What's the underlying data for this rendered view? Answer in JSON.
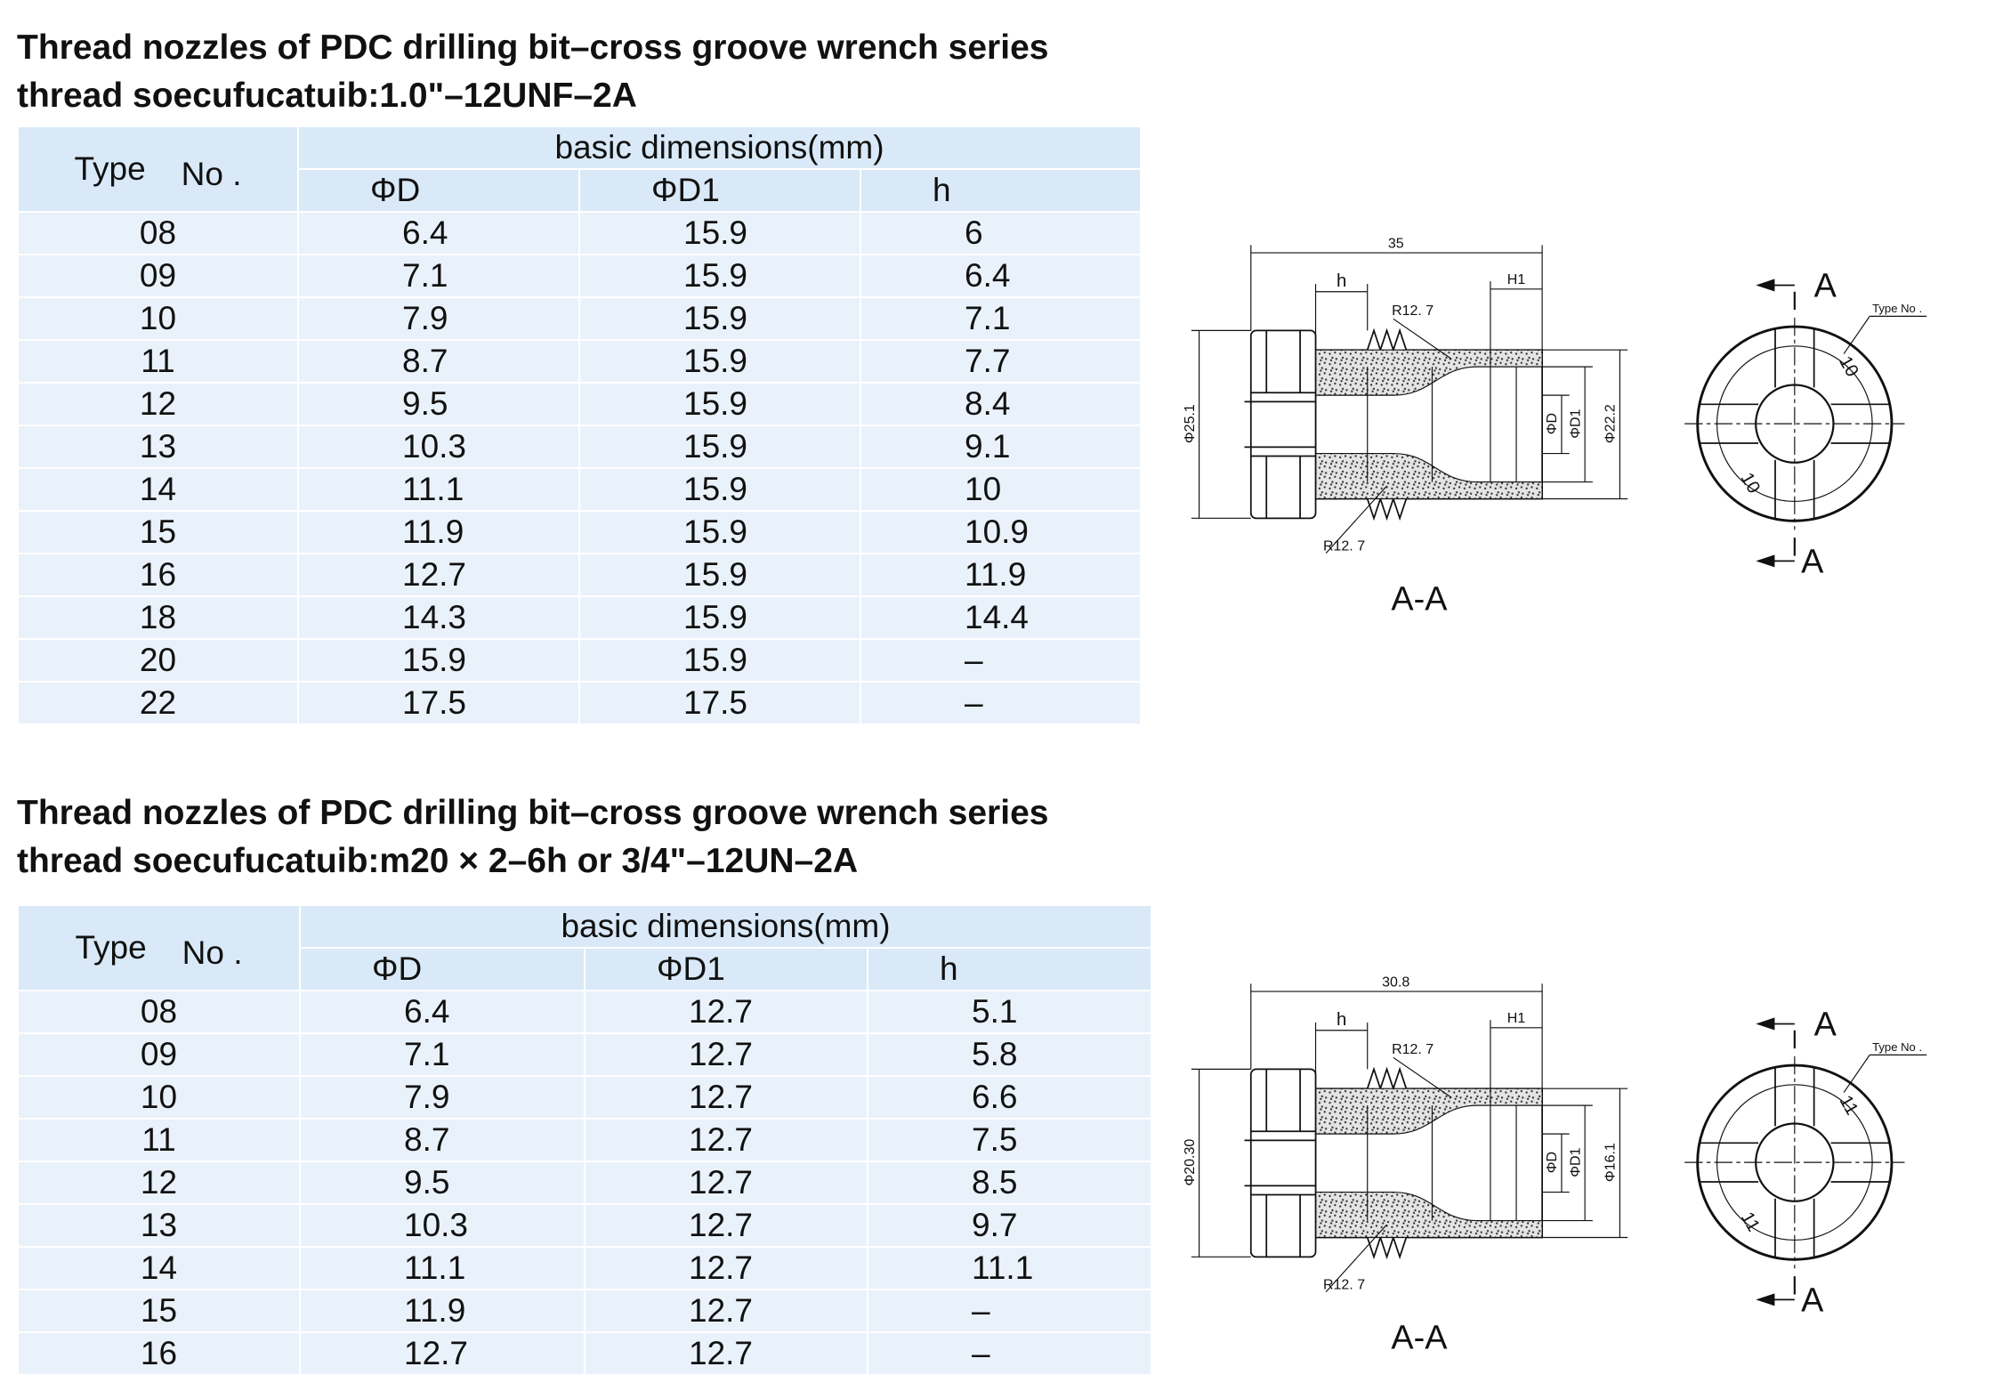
{
  "sections": [
    {
      "title": [
        "Thread nozzles of PDC drilling bit–cross groove wrench series",
        "thread soecufucatuib:1.0\"–12UNF–2A"
      ],
      "table": {
        "header": {
          "type": "Type",
          "no": "No .",
          "group": "basic dimensions(mm)",
          "columns": [
            "ΦD",
            "ΦD1",
            "h"
          ]
        },
        "rows": [
          [
            "08",
            "6.4",
            "15.9",
            "6"
          ],
          [
            "09",
            "7.1",
            "15.9",
            "6.4"
          ],
          [
            "10",
            "7.9",
            "15.9",
            "7.1"
          ],
          [
            "11",
            "8.7",
            "15.9",
            "7.7"
          ],
          [
            "12",
            "9.5",
            "15.9",
            "8.4"
          ],
          [
            "13",
            "10.3",
            "15.9",
            "9.1"
          ],
          [
            "14",
            "11.1",
            "15.9",
            "10"
          ],
          [
            "15",
            "11.9",
            "15.9",
            "10.9"
          ],
          [
            "16",
            "12.7",
            "15.9",
            "11.9"
          ],
          [
            "18",
            "14.3",
            "15.9",
            "14.4"
          ],
          [
            "20",
            "15.9",
            "15.9",
            "–"
          ],
          [
            "22",
            "17.5",
            "17.5",
            "–"
          ]
        ]
      },
      "drawing": {
        "overall": "35",
        "h": "h",
        "h1": "H1",
        "radius_top": "R12. 7",
        "radius_bottom": "R12. 7",
        "outer_dia": "Φ25.1",
        "d": "ΦD",
        "d1": "ΦD1",
        "body_dia": "Φ22.2",
        "section_top": "A",
        "section_bottom": "A",
        "type_no": "Type No .",
        "mark_top": "10",
        "mark_bottom": "10",
        "caption": "A-A"
      }
    },
    {
      "title": [
        "Thread nozzles of PDC drilling bit–cross groove wrench series",
        "thread soecufucatuib:m20 × 2–6h or 3/4\"–12UN–2A"
      ],
      "table": {
        "header": {
          "type": "Type",
          "no": "No .",
          "group": "basic dimensions(mm)",
          "columns": [
            "ΦD",
            "ΦD1",
            "h"
          ]
        },
        "rows": [
          [
            "08",
            "6.4",
            "12.7",
            "5.1"
          ],
          [
            "09",
            "7.1",
            "12.7",
            "5.8"
          ],
          [
            "10",
            "7.9",
            "12.7",
            "6.6"
          ],
          [
            "11",
            "8.7",
            "12.7",
            "7.5"
          ],
          [
            "12",
            "9.5",
            "12.7",
            "8.5"
          ],
          [
            "13",
            "10.3",
            "12.7",
            "9.7"
          ],
          [
            "14",
            "11.1",
            "12.7",
            "11.1"
          ],
          [
            "15",
            "11.9",
            "12.7",
            "–"
          ],
          [
            "16",
            "12.7",
            "12.7",
            "–"
          ]
        ]
      },
      "drawing": {
        "overall": "30.8",
        "h": "h",
        "h1": "H1",
        "radius_top": "R12. 7",
        "radius_bottom": "R12. 7",
        "outer_dia": "Φ20.30",
        "d": "ΦD",
        "d1": "ΦD1",
        "body_dia": "Φ16.1",
        "section_top": "A",
        "section_bottom": "A",
        "type_no": "Type No .",
        "mark_top": "11",
        "mark_bottom": "11",
        "caption": "A-A"
      }
    }
  ]
}
